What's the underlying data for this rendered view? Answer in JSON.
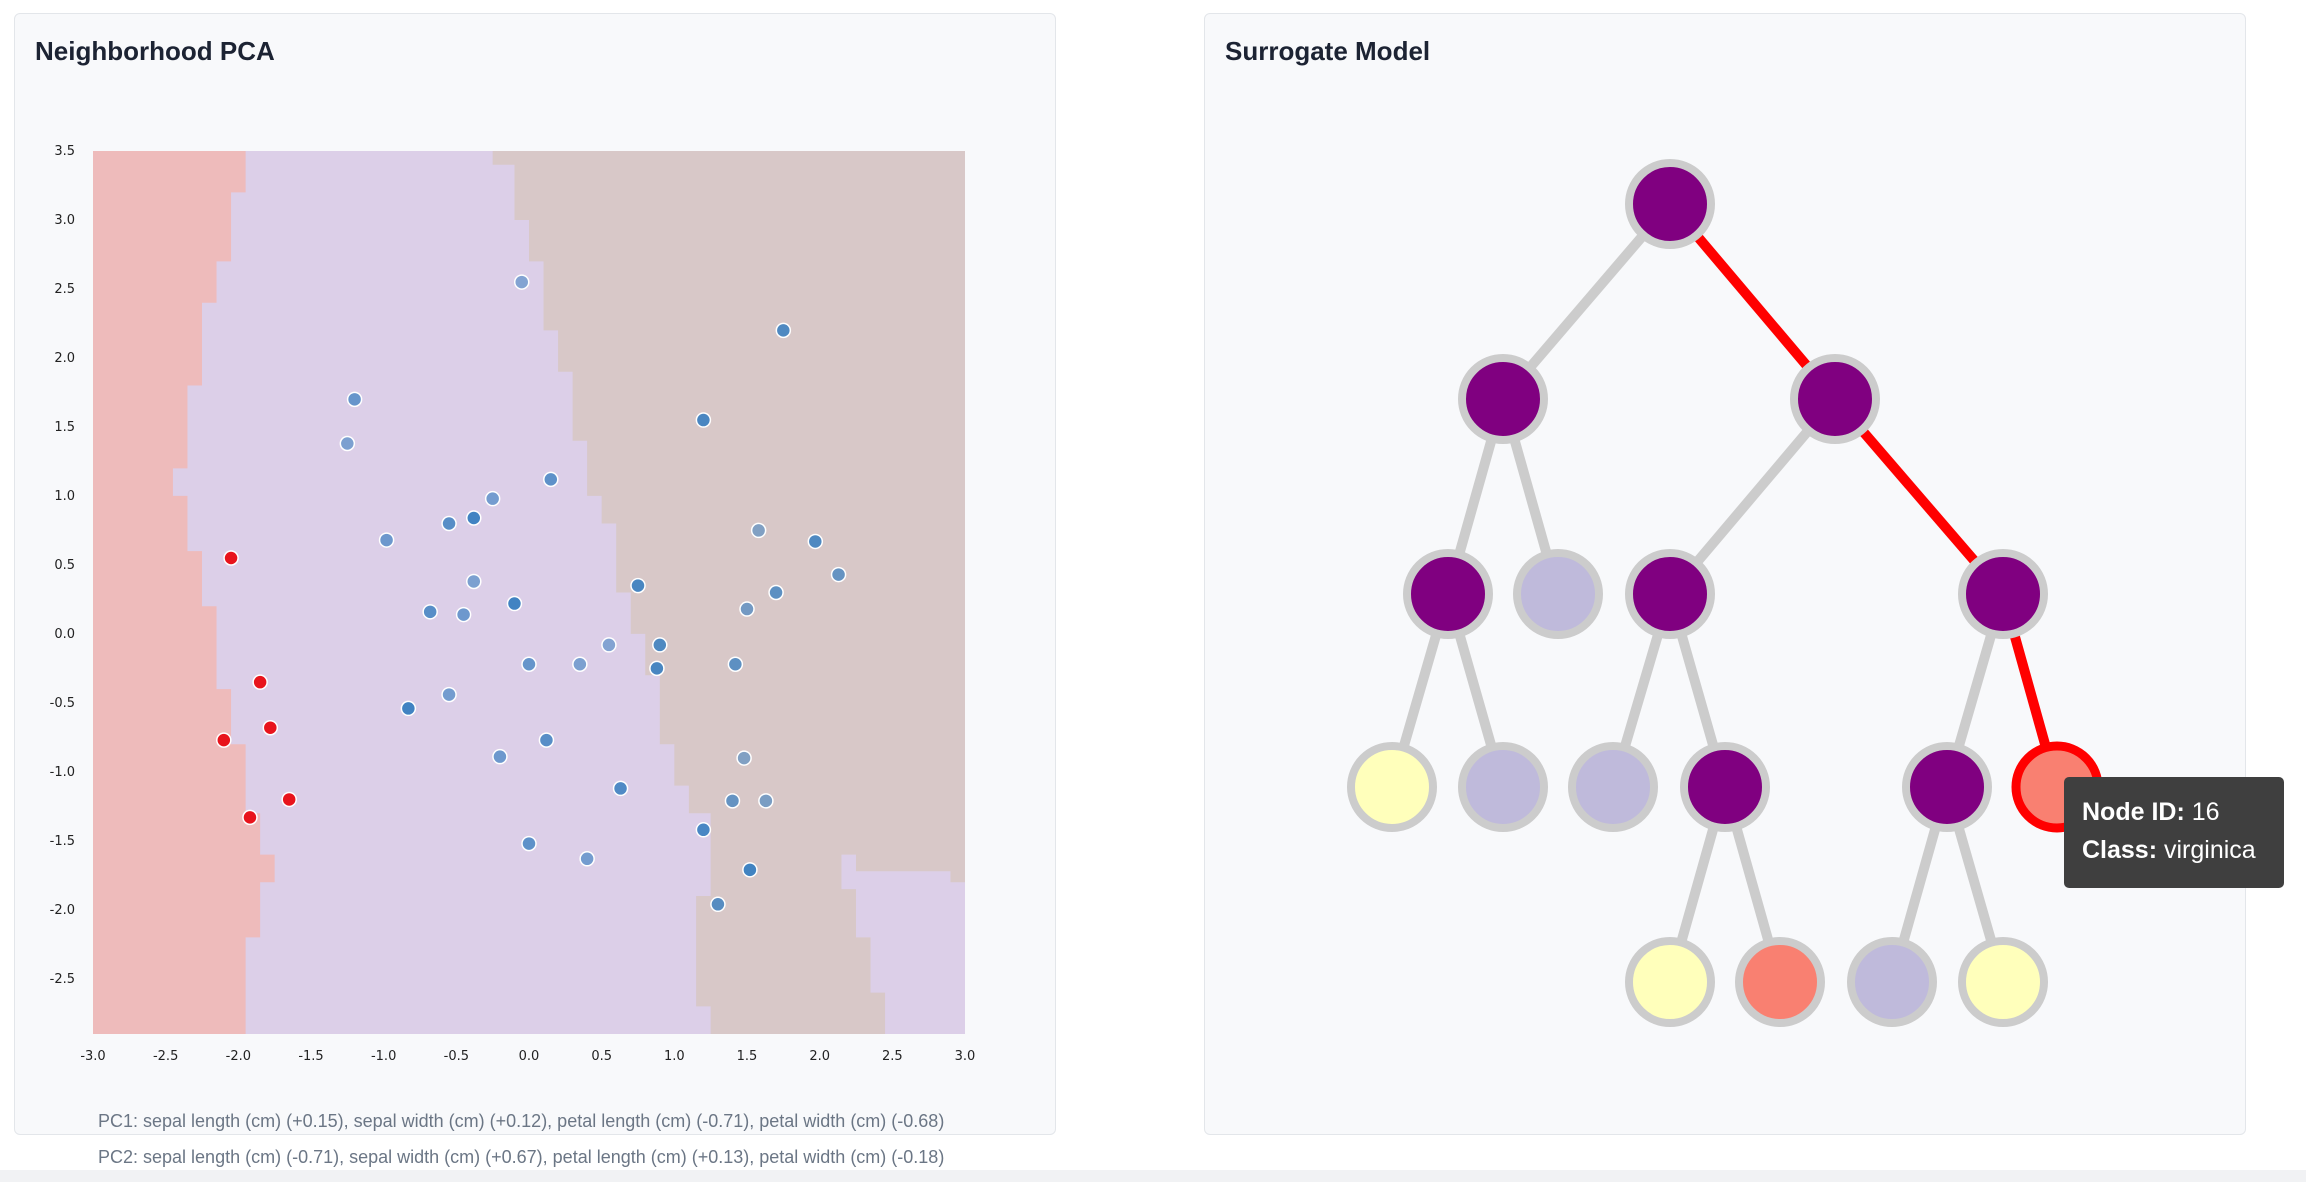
{
  "pca_panel": {
    "title": "Neighborhood PCA",
    "pc1": "PC1: sepal length (cm) (+0.15), sepal width (cm) (+0.12), petal length (cm) (-0.71), petal width (cm) (-0.68)",
    "pc2": "PC2: sepal length (cm) (-0.71), sepal width (cm) (+0.67), petal length (cm) (+0.13), petal width (cm) (-0.18)"
  },
  "tree_panel": {
    "title": "Surrogate Model",
    "tooltip": {
      "node_label": "Node ID:",
      "node_value": "16",
      "class_label": "Class:",
      "class_value": "virginica"
    }
  },
  "colors": {
    "region_red": "#eebbbb",
    "region_lavender": "#dccfe8",
    "region_taupe": "#d8c8c8",
    "point_red": "#e8141c",
    "point_blue": "#3a7fc0",
    "node_purple": "#800080",
    "node_lavender": "#bfbadb",
    "node_yellow": "#ffffbb",
    "node_salmon": "#f98071",
    "node_stroke": "#cccccc",
    "path_red": "#ff0000"
  },
  "chart_data": [
    {
      "type": "scatter",
      "title": "Neighborhood PCA",
      "xlim": [
        -3.0,
        3.0
      ],
      "ylim": [
        -2.9,
        3.5
      ],
      "xticks": [
        "-3.0",
        "-2.5",
        "-2.0",
        "-1.5",
        "-1.0",
        "-0.5",
        "0.0",
        "0.5",
        "1.0",
        "1.5",
        "2.0",
        "2.5",
        "3.0"
      ],
      "yticks": [
        "3.5",
        "3.0",
        "2.5",
        "2.0",
        "1.5",
        "1.0",
        "0.5",
        "0.0",
        "-0.5",
        "-1.0",
        "-1.5",
        "-2.0",
        "-2.5"
      ],
      "grid": false,
      "decision_regions": {
        "red_to_lavender_boundary": [
          [
            -1.95,
            3.5
          ],
          [
            -1.95,
            3.2
          ],
          [
            -2.05,
            3.2
          ],
          [
            -2.05,
            2.7
          ],
          [
            -2.15,
            2.7
          ],
          [
            -2.15,
            2.4
          ],
          [
            -2.25,
            2.4
          ],
          [
            -2.25,
            1.8
          ],
          [
            -2.35,
            1.8
          ],
          [
            -2.35,
            1.2
          ],
          [
            -2.45,
            1.2
          ],
          [
            -2.45,
            1.0
          ],
          [
            -2.35,
            1.0
          ],
          [
            -2.35,
            0.6
          ],
          [
            -2.25,
            0.6
          ],
          [
            -2.25,
            0.2
          ],
          [
            -2.15,
            0.2
          ],
          [
            -2.15,
            -0.4
          ],
          [
            -2.05,
            -0.4
          ],
          [
            -2.05,
            -0.8
          ],
          [
            -1.95,
            -0.8
          ],
          [
            -1.95,
            -1.3
          ],
          [
            -1.85,
            -1.3
          ],
          [
            -1.85,
            -1.6
          ],
          [
            -1.75,
            -1.6
          ],
          [
            -1.75,
            -1.8
          ],
          [
            -1.85,
            -1.8
          ],
          [
            -1.85,
            -2.2
          ],
          [
            -1.95,
            -2.2
          ],
          [
            -1.95,
            -2.9
          ]
        ],
        "lavender_to_taupe_boundary": [
          [
            -0.25,
            3.5
          ],
          [
            -0.25,
            3.4
          ],
          [
            -0.1,
            3.4
          ],
          [
            -0.1,
            3.0
          ],
          [
            0.0,
            3.0
          ],
          [
            0.0,
            2.7
          ],
          [
            0.1,
            2.7
          ],
          [
            0.1,
            2.2
          ],
          [
            0.2,
            2.2
          ],
          [
            0.2,
            1.9
          ],
          [
            0.3,
            1.9
          ],
          [
            0.3,
            1.4
          ],
          [
            0.4,
            1.4
          ],
          [
            0.4,
            1.0
          ],
          [
            0.5,
            1.0
          ],
          [
            0.5,
            0.8
          ],
          [
            0.6,
            0.8
          ],
          [
            0.6,
            0.3
          ],
          [
            0.7,
            0.3
          ],
          [
            0.7,
            0.0
          ],
          [
            0.8,
            0.0
          ],
          [
            0.8,
            -0.3
          ],
          [
            0.9,
            -0.3
          ],
          [
            0.9,
            -0.8
          ],
          [
            1.0,
            -0.8
          ],
          [
            1.0,
            -1.1
          ],
          [
            1.1,
            -1.1
          ],
          [
            1.1,
            -1.3
          ],
          [
            1.25,
            -1.3
          ],
          [
            1.25,
            -1.9
          ],
          [
            1.15,
            -1.9
          ],
          [
            1.15,
            -2.7
          ],
          [
            1.25,
            -2.7
          ],
          [
            1.25,
            -2.9
          ]
        ],
        "lower_right_lavender": [
          [
            3.0,
            -1.8
          ],
          [
            2.9,
            -1.8
          ],
          [
            2.9,
            -1.72
          ],
          [
            2.25,
            -1.72
          ],
          [
            2.25,
            -1.6
          ],
          [
            2.15,
            -1.6
          ],
          [
            2.15,
            -1.85
          ],
          [
            2.25,
            -1.85
          ],
          [
            2.25,
            -2.2
          ],
          [
            2.35,
            -2.2
          ],
          [
            2.35,
            -2.6
          ],
          [
            2.45,
            -2.6
          ],
          [
            2.45,
            -2.9
          ],
          [
            3.0,
            -2.9
          ]
        ]
      },
      "series": [
        {
          "name": "",
          "color": "#e8141c",
          "points": [
            [
              -2.05,
              0.55
            ],
            [
              -1.85,
              -0.35
            ],
            [
              -1.78,
              -0.68
            ],
            [
              -2.1,
              -0.77
            ],
            [
              -1.65,
              -1.2
            ],
            [
              -1.92,
              -1.33
            ]
          ]
        },
        {
          "name": "",
          "color": "#3a7fc0",
          "points": [
            [
              -0.05,
              2.55
            ],
            [
              1.75,
              2.2
            ],
            [
              -1.2,
              1.7
            ],
            [
              -1.25,
              1.38
            ],
            [
              1.2,
              1.55
            ],
            [
              0.15,
              1.12
            ],
            [
              -0.25,
              0.98
            ],
            [
              -0.38,
              0.84
            ],
            [
              -0.55,
              0.8
            ],
            [
              -0.98,
              0.68
            ],
            [
              1.58,
              0.75
            ],
            [
              1.97,
              0.67
            ],
            [
              2.13,
              0.43
            ],
            [
              -0.38,
              0.38
            ],
            [
              0.75,
              0.35
            ],
            [
              1.7,
              0.3
            ],
            [
              1.5,
              0.18
            ],
            [
              -0.1,
              0.22
            ],
            [
              -0.68,
              0.16
            ],
            [
              -0.45,
              0.14
            ],
            [
              0.55,
              -0.08
            ],
            [
              0.9,
              -0.08
            ],
            [
              0.0,
              -0.22
            ],
            [
              0.35,
              -0.22
            ],
            [
              0.88,
              -0.25
            ],
            [
              1.42,
              -0.22
            ],
            [
              -0.55,
              -0.44
            ],
            [
              -0.83,
              -0.54
            ],
            [
              0.12,
              -0.77
            ],
            [
              -0.2,
              -0.89
            ],
            [
              1.48,
              -0.9
            ],
            [
              0.63,
              -1.12
            ],
            [
              1.4,
              -1.21
            ],
            [
              1.63,
              -1.21
            ],
            [
              1.2,
              -1.42
            ],
            [
              0.0,
              -1.52
            ],
            [
              0.4,
              -1.63
            ],
            [
              1.52,
              -1.71
            ],
            [
              1.3,
              -1.96
            ]
          ]
        }
      ]
    },
    {
      "type": "tree",
      "title": "Surrogate Model",
      "highlighted_node": "16",
      "highlighted_class": "virginica",
      "nodes": [
        {
          "id": "0",
          "fill": "purple",
          "parent": null,
          "highlight": true
        },
        {
          "id": "1",
          "fill": "purple",
          "parent": "0",
          "highlight": false
        },
        {
          "id": "2",
          "fill": "purple",
          "parent": "0",
          "highlight": true
        },
        {
          "id": "3",
          "fill": "purple",
          "parent": "1",
          "highlight": false
        },
        {
          "id": "4",
          "fill": "lavender",
          "parent": "1",
          "highlight": false
        },
        {
          "id": "5",
          "fill": "purple",
          "parent": "2",
          "highlight": false
        },
        {
          "id": "6",
          "fill": "purple",
          "parent": "2",
          "highlight": true
        },
        {
          "id": "7",
          "fill": "yellow",
          "parent": "3",
          "highlight": false
        },
        {
          "id": "8",
          "fill": "lavender",
          "parent": "3",
          "highlight": false
        },
        {
          "id": "9",
          "fill": "lavender",
          "parent": "5",
          "highlight": false
        },
        {
          "id": "10",
          "fill": "purple",
          "parent": "5",
          "highlight": false
        },
        {
          "id": "11",
          "fill": "purple",
          "parent": "6",
          "highlight": false
        },
        {
          "id": "16",
          "fill": "salmon",
          "parent": "6",
          "highlight": true
        },
        {
          "id": "12",
          "fill": "yellow",
          "parent": "10",
          "highlight": false
        },
        {
          "id": "13",
          "fill": "salmon",
          "parent": "10",
          "highlight": false
        },
        {
          "id": "14",
          "fill": "lavender",
          "parent": "11",
          "highlight": false
        },
        {
          "id": "15",
          "fill": "yellow",
          "parent": "11",
          "highlight": false
        }
      ]
    }
  ]
}
